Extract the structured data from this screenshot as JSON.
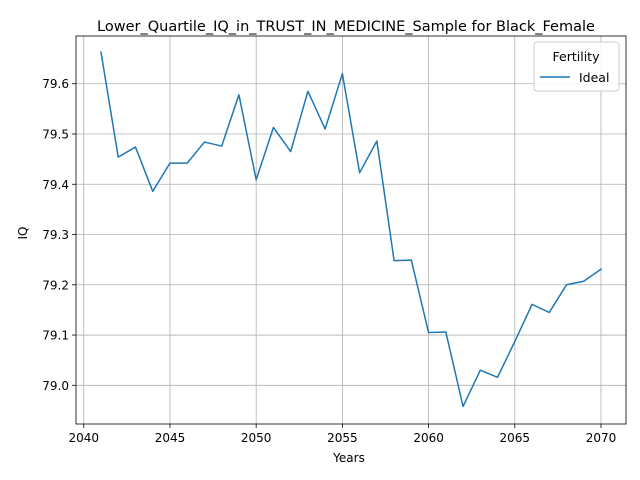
{
  "chart_data": {
    "type": "line",
    "title": "Lower_Quartile_IQ_in_TRUST_IN_MEDICINE_Sample for Black_Female",
    "xlabel": "Years",
    "ylabel": "IQ",
    "grid": true,
    "xlim": [
      2039.55,
      2071.45
    ],
    "ylim": [
      78.923,
      79.695
    ],
    "xticks": [
      2040,
      2045,
      2050,
      2055,
      2060,
      2065,
      2070
    ],
    "yticks": [
      79.0,
      79.1,
      79.2,
      79.3,
      79.4,
      79.5,
      79.6
    ],
    "xtick_labels": [
      "2040",
      "2045",
      "2050",
      "2055",
      "2060",
      "2065",
      "2070"
    ],
    "ytick_labels": [
      "79.0",
      "79.1",
      "79.2",
      "79.3",
      "79.4",
      "79.5",
      "79.6"
    ],
    "legend": {
      "title": "Fertility",
      "position": "top-right"
    },
    "series": [
      {
        "name": "Ideal",
        "color": "#1f77b4",
        "x": [
          2041,
          2042,
          2043,
          2044,
          2045,
          2046,
          2047,
          2048,
          2049,
          2050,
          2051,
          2052,
          2053,
          2054,
          2055,
          2056,
          2057,
          2058,
          2059,
          2060,
          2061,
          2062,
          2063,
          2064,
          2065,
          2066,
          2067,
          2068,
          2069,
          2070
        ],
        "y": [
          79.663,
          79.454,
          79.474,
          79.386,
          79.442,
          79.442,
          79.484,
          79.476,
          79.578,
          79.409,
          79.513,
          79.465,
          79.585,
          79.51,
          79.62,
          79.423,
          79.486,
          79.248,
          79.249,
          79.105,
          79.106,
          78.958,
          79.03,
          79.016,
          79.087,
          79.161,
          79.145,
          79.2,
          79.207,
          79.231
        ]
      }
    ]
  }
}
